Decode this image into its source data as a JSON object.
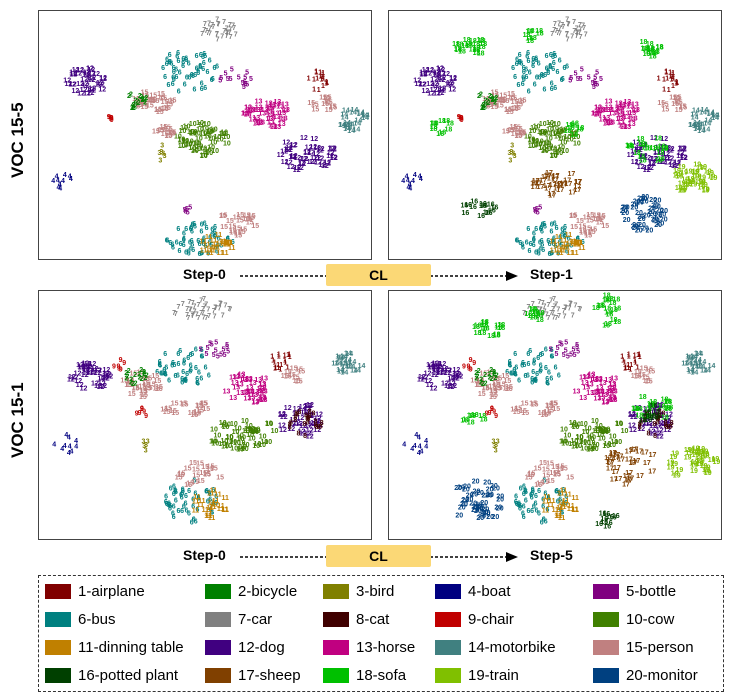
{
  "rows": [
    {
      "label": "VOC 15-5",
      "left_step": "Step-0",
      "cl": "CL",
      "right_step": "Step-1"
    },
    {
      "label": "VOC 15-1",
      "left_step": "Step-0",
      "cl": "CL",
      "right_step": "Step-5"
    }
  ],
  "classes": [
    {
      "id": "1",
      "label": "1-airplane",
      "color": "#800000"
    },
    {
      "id": "2",
      "label": "2-bicycle",
      "color": "#008000"
    },
    {
      "id": "3",
      "label": "3-bird",
      "color": "#808000"
    },
    {
      "id": "4",
      "label": "4-boat",
      "color": "#000080"
    },
    {
      "id": "5",
      "label": "5-bottle",
      "color": "#800080"
    },
    {
      "id": "6",
      "label": "6-bus",
      "color": "#008080"
    },
    {
      "id": "7",
      "label": "7-car",
      "color": "#808080"
    },
    {
      "id": "8",
      "label": "8-cat",
      "color": "#400000"
    },
    {
      "id": "9",
      "label": "9-chair",
      "color": "#c00000"
    },
    {
      "id": "10",
      "label": "10-cow",
      "color": "#408000"
    },
    {
      "id": "11",
      "label": "11-dinning table",
      "color": "#c08000"
    },
    {
      "id": "12",
      "label": "12-dog",
      "color": "#400080"
    },
    {
      "id": "13",
      "label": "13-horse",
      "color": "#c00080"
    },
    {
      "id": "14",
      "label": "14-motorbike",
      "color": "#408080"
    },
    {
      "id": "15",
      "label": "15-person",
      "color": "#c08080"
    },
    {
      "id": "16",
      "label": "16-potted plant",
      "color": "#004000"
    },
    {
      "id": "17",
      "label": "17-sheep",
      "color": "#804000"
    },
    {
      "id": "18",
      "label": "18-sofa",
      "color": "#00c000"
    },
    {
      "id": "19",
      "label": "19-train",
      "color": "#80c000"
    },
    {
      "id": "20",
      "label": "20-monitor",
      "color": "#004080"
    }
  ]
}
